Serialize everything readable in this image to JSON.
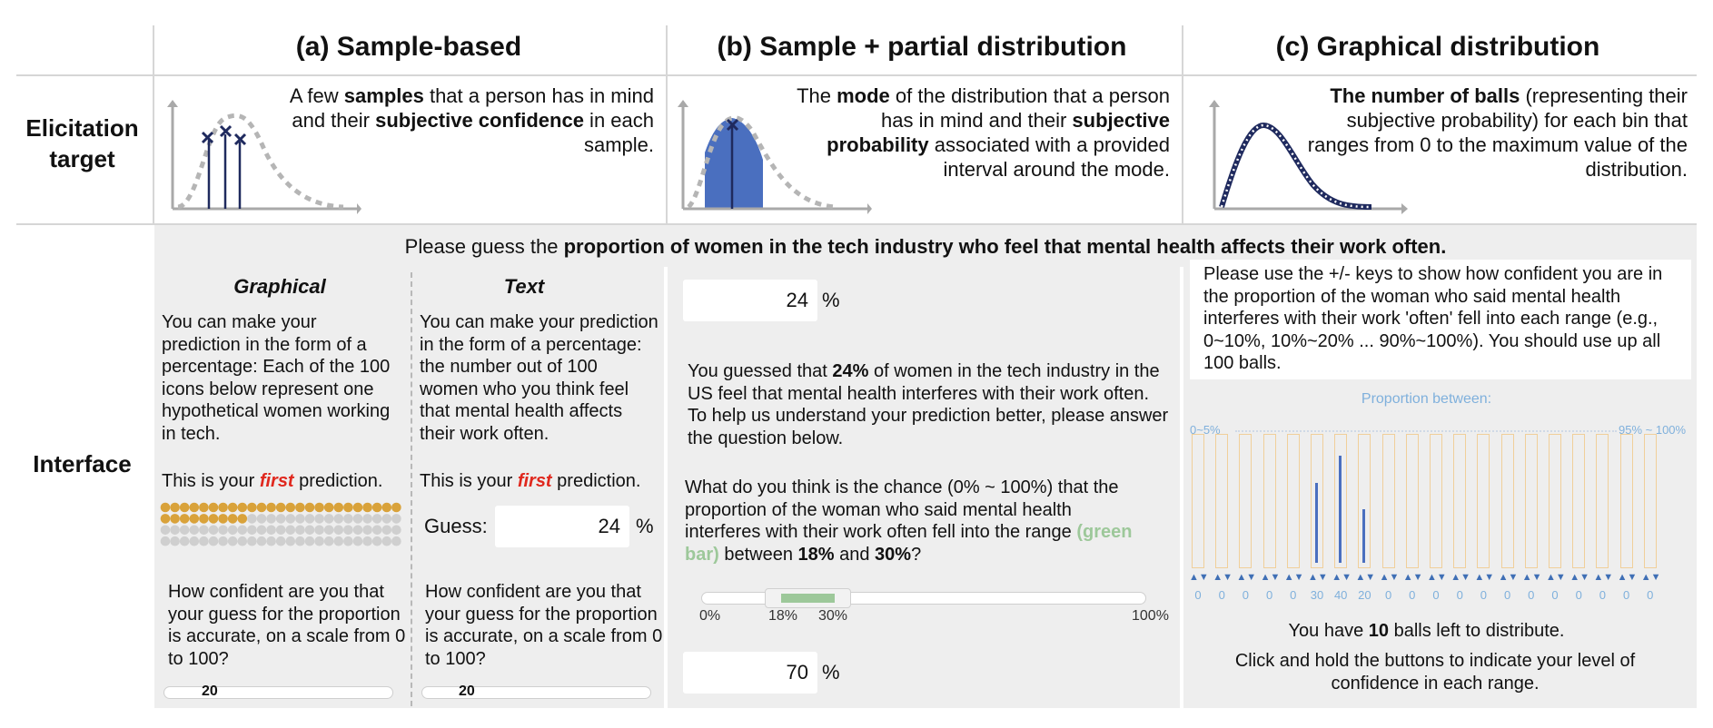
{
  "columns": {
    "a": "(a) Sample-based",
    "b": "(b) Sample + partial distribution",
    "c": "(c) Graphical distribution"
  },
  "rows": {
    "target": "Elicitation target",
    "interface": "Interface"
  },
  "targets": {
    "a": {
      "p1": "A few ",
      "b1": "samples",
      "p2": " that a person has in mind and their ",
      "b2": "subjective confidence",
      "p3": " in each sample."
    },
    "b": {
      "p1": "The ",
      "b1": "mode",
      "p2": " of the distribution that a person has in mind and their ",
      "b2": "subjective probability",
      "p3": " associated with a provided interval around the mode."
    },
    "c": {
      "b1": "The number of balls",
      "p1": " (representing their subjective probability) for each bin that ranges from 0 to the maximum value of the distribution."
    }
  },
  "question": {
    "prefix": "Please guess the ",
    "bold": "proportion of women in the tech industry who feel that mental health affects their work often."
  },
  "graphical": {
    "title": "Graphical",
    "body": "You can make your prediction in the form of a percentage: Each of the 100 icons below represent one hypothetical women working in tech.",
    "first_pre": "This is your ",
    "first": "first",
    "first_post": " prediction.",
    "confidence": "How confident are you that your guess for the proportion is accurate, on a scale from 0 to 100?",
    "slider_value": "20",
    "filled_icons": 34,
    "total_icons": 100
  },
  "text_ui": {
    "title": "Text",
    "body": "You can make your prediction in the form of a percentage: the number out of 100 women who you think feel that mental health affects their work often.",
    "first_pre": "This is your ",
    "first": "first",
    "first_post": " prediction.",
    "guess_label": "Guess:",
    "guess_value": "24",
    "percent": "%",
    "confidence": "How confident are you that your guess for the proportion is accurate, on a scale from 0 to 100?",
    "slider_value": "20"
  },
  "partial": {
    "mode_value": "24",
    "percent": "%",
    "info_pre": "You guessed that ",
    "info_bold": "24%",
    "info_post": " of women in the tech industry in the US feel that mental health interferes with their work often. To help us understand your prediction better, please answer the question below.",
    "q_pre": "What do you think is the chance (0% ~ 100%) that the proportion of the woman who said mental health interferes with their work often fell into the range ",
    "q_green": "(green bar)",
    "q_mid": " between ",
    "q_b1": "18%",
    "q_and": " and ",
    "q_b2": "30%",
    "q_end": "?",
    "axis": {
      "min": "0%",
      "lo": "18%",
      "hi": "30%",
      "max": "100%"
    },
    "interval": [
      18,
      30
    ],
    "chance_value": "70"
  },
  "balls": {
    "instructions": "Please use the +/- keys to show how confident you are in the proportion of the woman who said mental health interferes with their work 'often' fell into each range (e.g., 0~10%, 10%~20% ... 90%~100%). You should use up all 100 balls.",
    "proportion_label": "Proportion between:",
    "left_label": "0~5%",
    "right_label": "95% ~ 100%",
    "counts": [
      0,
      0,
      0,
      0,
      0,
      30,
      40,
      20,
      0,
      0,
      0,
      0,
      0,
      0,
      0,
      0,
      0,
      0,
      0,
      0
    ],
    "left_pre": "You have ",
    "left_bold": "10",
    "left_post": " balls left to distribute.",
    "hint": "Click and hold the buttons to indicate your level of confidence in each range."
  },
  "colors": {
    "accent_blue": "#4a6fbf",
    "dark_blue": "#1f2a5e",
    "orange_icon": "#d9a23a",
    "grey_icon": "#cfcfcf",
    "green_bar": "#9dc89a",
    "red": "#e0281e"
  }
}
